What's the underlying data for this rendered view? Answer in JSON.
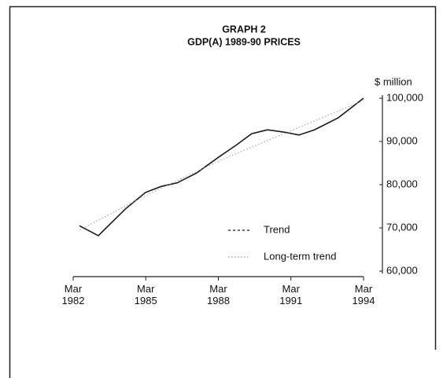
{
  "chart_data": {
    "type": "line",
    "title": "GRAPH 2",
    "subtitle": "GDP(A) 1989-90 PRICES",
    "y_label": "$ million",
    "series": [
      {
        "name": "Trend",
        "color": "#1a1a1a",
        "style": "solid",
        "x": [
          1982.43,
          1983.21,
          1984.35,
          1985.16,
          1985.81,
          1986.46,
          1987.27,
          1988.19,
          1988.9,
          1989.55,
          1990.2,
          1990.85,
          1991.5,
          1992.14,
          1993.13,
          1994.17
        ],
        "values": [
          70500,
          68200,
          74500,
          78200,
          79600,
          80400,
          82700,
          86400,
          89100,
          91800,
          92700,
          92200,
          91500,
          92700,
          95500,
          100000
        ]
      },
      {
        "name": "Long-term trend",
        "color": "#9a9a9a",
        "style": "dotted",
        "x": [
          1982.43,
          1985.17,
          1988.19,
          1991.17,
          1994.17
        ],
        "values": [
          69500,
          77500,
          85500,
          92500,
          99500
        ]
      }
    ],
    "xlim": [
      1982.17,
      1994.17
    ],
    "xticks": [
      {
        "value": 1982.17,
        "label": "Mar 1982"
      },
      {
        "value": 1985.17,
        "label": "Mar 1985"
      },
      {
        "value": 1988.17,
        "label": "Mar 1988"
      },
      {
        "value": 1991.17,
        "label": "Mar 1991"
      },
      {
        "value": 1994.17,
        "label": "Mar 1994"
      }
    ],
    "ylim": [
      60000,
      100000
    ],
    "yticks": [
      {
        "value": 60000,
        "label": "60,000"
      },
      {
        "value": 70000,
        "label": "70,000"
      },
      {
        "value": 80000,
        "label": "80,000"
      },
      {
        "value": 90000,
        "label": "90,000"
      },
      {
        "value": 100000,
        "label": "100,000"
      }
    ],
    "y_axis_side": "right",
    "grid": false,
    "legend": "lower-right"
  }
}
